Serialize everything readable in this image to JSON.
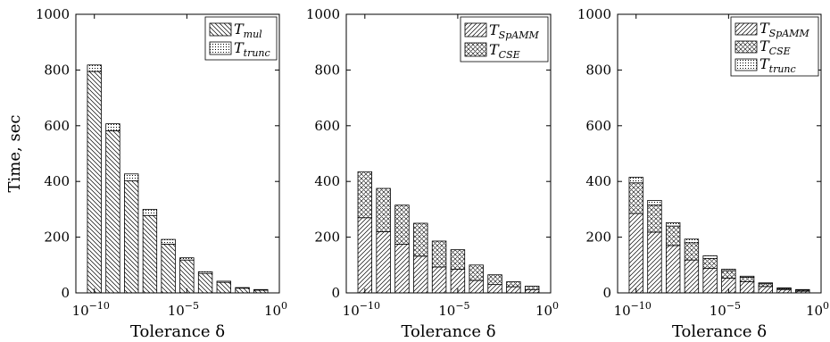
{
  "chart_data": [
    {
      "type": "bar",
      "stacked": true,
      "xlabel": "Tolerance δ",
      "ylabel": "Time, sec",
      "ylim": [
        0,
        1000
      ],
      "yticks": [
        "0",
        "200",
        "400",
        "600",
        "800",
        "1000"
      ],
      "xticks": [
        {
          "base": "10",
          "exp": "−10"
        },
        {
          "base": "10",
          "exp": "−5"
        },
        {
          "base": "10",
          "exp": "0"
        }
      ],
      "x_scale": "log",
      "xlim_exponent": [
        -11,
        0
      ],
      "x_exponents": [
        -10,
        -9,
        -8,
        -7,
        -6,
        -5,
        -4,
        -3,
        -2,
        -1
      ],
      "legend_position": "top-right",
      "series": [
        {
          "name": "T",
          "sub": "mul",
          "pattern": "back-diagonal",
          "values": [
            795,
            582,
            402,
            278,
            175,
            118,
            70,
            38,
            17,
            10
          ]
        },
        {
          "name": "T",
          "sub": "trunc",
          "pattern": "dots",
          "values": [
            23,
            25,
            25,
            22,
            17,
            8,
            6,
            4,
            2,
            2
          ]
        }
      ]
    },
    {
      "type": "bar",
      "stacked": true,
      "xlabel": "Tolerance δ",
      "ylabel": "",
      "ylim": [
        0,
        1000
      ],
      "yticks": [
        "0",
        "200",
        "400",
        "600",
        "800",
        "1000"
      ],
      "xticks": [
        {
          "base": "10",
          "exp": "−10"
        },
        {
          "base": "10",
          "exp": "−5"
        },
        {
          "base": "10",
          "exp": "0"
        }
      ],
      "x_scale": "log",
      "xlim_exponent": [
        -11,
        0
      ],
      "x_exponents": [
        -10,
        -9,
        -8,
        -7,
        -6,
        -5,
        -4,
        -3,
        -2,
        -1
      ],
      "legend_position": "top-right",
      "series": [
        {
          "name": "T",
          "sub": "SpAMM",
          "pattern": "forward-diagonal",
          "values": [
            270,
            220,
            175,
            132,
            93,
            85,
            45,
            30,
            22,
            12
          ]
        },
        {
          "name": "T",
          "sub": "CSE",
          "pattern": "crosshatch",
          "values": [
            165,
            155,
            140,
            118,
            93,
            70,
            55,
            35,
            18,
            12
          ]
        }
      ]
    },
    {
      "type": "bar",
      "stacked": true,
      "xlabel": "Tolerance δ",
      "ylabel": "",
      "ylim": [
        0,
        1000
      ],
      "yticks": [
        "0",
        "200",
        "400",
        "600",
        "800",
        "1000"
      ],
      "xticks": [
        {
          "base": "10",
          "exp": "−10"
        },
        {
          "base": "10",
          "exp": "−5"
        },
        {
          "base": "10",
          "exp": "0"
        }
      ],
      "x_scale": "log",
      "xlim_exponent": [
        -11,
        0
      ],
      "x_exponents": [
        -10,
        -9,
        -8,
        -7,
        -6,
        -5,
        -4,
        -3,
        -2,
        -1
      ],
      "legend_position": "top-right",
      "series": [
        {
          "name": "T",
          "sub": "SpAMM",
          "pattern": "forward-diagonal",
          "values": [
            285,
            218,
            170,
            118,
            88,
            53,
            40,
            23,
            12,
            6
          ]
        },
        {
          "name": "T",
          "sub": "CSE",
          "pattern": "crosshatch",
          "values": [
            110,
            97,
            70,
            62,
            35,
            27,
            16,
            10,
            4,
            4
          ]
        },
        {
          "name": "T",
          "sub": "trunc",
          "pattern": "dots",
          "values": [
            20,
            17,
            12,
            13,
            10,
            5,
            4,
            3,
            2,
            2
          ]
        }
      ]
    }
  ]
}
